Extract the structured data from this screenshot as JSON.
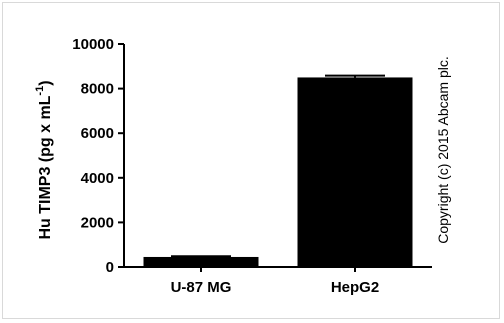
{
  "chart_data": {
    "type": "bar",
    "categories": [
      "U-87 MG",
      "HepG2"
    ],
    "values": [
      450,
      8500
    ],
    "error_high": [
      480,
      8580
    ],
    "ylabel_main": "Hu TIMP3 (pg x mL",
    "ylabel_sup": "-1",
    "ylabel_close": ")",
    "ylim": [
      0,
      10000
    ],
    "yticks": [
      0,
      2000,
      4000,
      6000,
      8000,
      10000
    ],
    "ytick_labels": [
      "0",
      "2000",
      "4000",
      "6000",
      "8000",
      "10000"
    ],
    "bar_color": "#000000",
    "grid": false,
    "annotation": "Copyright (c) 2015 Abcam plc."
  }
}
